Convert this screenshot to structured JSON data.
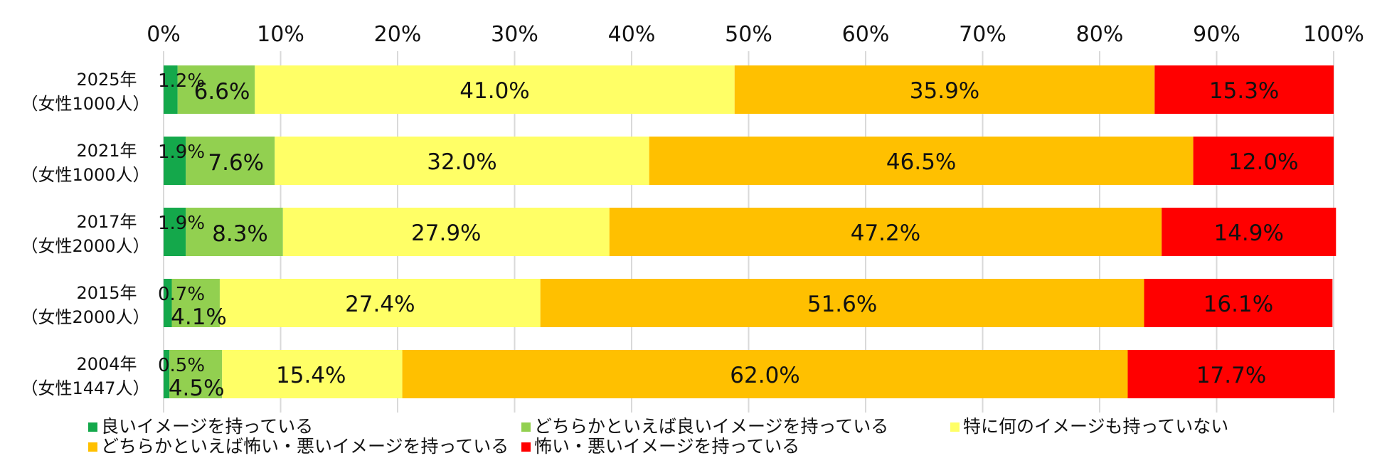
{
  "chart_data": {
    "type": "bar",
    "orientation": "horizontal",
    "stacked": true,
    "xlim": [
      0,
      100
    ],
    "x_ticks": [
      "0%",
      "10%",
      "20%",
      "30%",
      "40%",
      "50%",
      "60%",
      "70%",
      "80%",
      "90%",
      "100%"
    ],
    "grid": true,
    "legend_position": "bottom",
    "categories": [
      {
        "year": "2025年",
        "sample": "（女性1000人）"
      },
      {
        "year": "2021年",
        "sample": "（女性1000人）"
      },
      {
        "year": "2017年",
        "sample": "（女性2000人）"
      },
      {
        "year": "2015年",
        "sample": "（女性2000人）"
      },
      {
        "year": "2004年",
        "sample": "（女性1447人）"
      }
    ],
    "series": [
      {
        "name": "良いイメージを持っている",
        "color": "#14a84b",
        "values": [
          1.2,
          1.9,
          1.9,
          0.7,
          0.5
        ]
      },
      {
        "name": "どちらかといえば良いイメージを持っている",
        "color": "#92d050",
        "values": [
          6.6,
          7.6,
          8.3,
          4.1,
          4.5
        ]
      },
      {
        "name": "特に何のイメージも持っていない",
        "color": "#ffff66",
        "values": [
          41.0,
          32.0,
          27.9,
          27.4,
          15.4
        ]
      },
      {
        "name": "どちらかといえば怖い・悪いイメージを持っている",
        "color": "#ffc000",
        "values": [
          35.9,
          46.5,
          47.2,
          51.6,
          62.0
        ]
      },
      {
        "name": "怖い・悪いイメージを持っている",
        "color": "#ff0000",
        "values": [
          15.3,
          12.0,
          14.9,
          16.1,
          17.7
        ]
      }
    ],
    "data_labels": [
      [
        "1.2%",
        "6.6%",
        "41.0%",
        "35.9%",
        "15.3%"
      ],
      [
        "1.9%",
        "7.6%",
        "32.0%",
        "46.5%",
        "12.0%"
      ],
      [
        "1.9%",
        "8.3%",
        "27.9%",
        "47.2%",
        "14.9%"
      ],
      [
        "0.7%",
        "4.1%",
        "27.4%",
        "51.6%",
        "16.1%"
      ],
      [
        "0.5%",
        "4.5%",
        "15.4%",
        "62.0%",
        "17.7%"
      ]
    ]
  }
}
